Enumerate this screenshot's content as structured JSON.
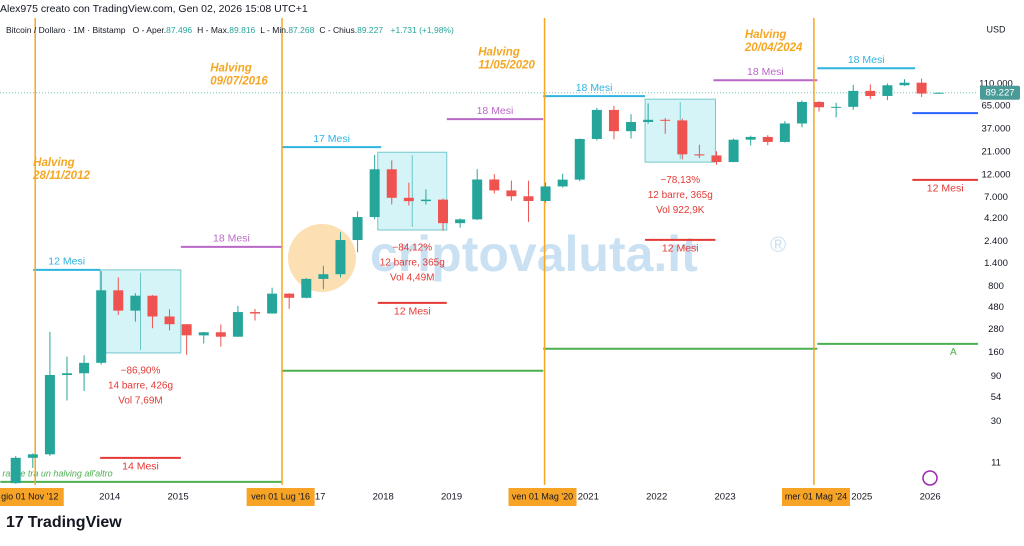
{
  "header": {
    "author_line": "Alex975 creato con TradingView.com, Gen 02, 2026 15:08 UTC+1",
    "symbol": "Bitcoin / Dollaro · 1M · Bitstamp",
    "fields": [
      {
        "key": "O - Aper.",
        "value": "87.496"
      },
      {
        "key": "H - Max.",
        "value": "89.816"
      },
      {
        "key": "L - Min.",
        "value": "87.268"
      },
      {
        "key": "C - Chius.",
        "value": "89.227"
      }
    ],
    "change": "+1.731 (+1,98%)"
  },
  "footer": {
    "logo": "TradingView"
  },
  "chart_data": {
    "type": "candlestick",
    "log_scale": true,
    "currency": "USD",
    "watermark": "criptovaluta.it",
    "watermark_mark": "®",
    "up_color": "#26a69a",
    "down_color": "#ef5350",
    "x": [
      2012.625,
      2012.875,
      2013.125,
      2013.375,
      2013.625,
      2013.875,
      2014.125,
      2014.375,
      2014.625,
      2014.875,
      2015.125,
      2015.375,
      2015.625,
      2015.875,
      2016.125,
      2016.375,
      2016.625,
      2016.875,
      2017.125,
      2017.375,
      2017.625,
      2017.875,
      2018.125,
      2018.375,
      2018.625,
      2018.875,
      2019.125,
      2019.375,
      2019.625,
      2019.875,
      2020.125,
      2020.375,
      2020.625,
      2020.875,
      2021.125,
      2021.375,
      2021.625,
      2021.875,
      2022.125,
      2022.375,
      2022.625,
      2022.875,
      2023.125,
      2023.375,
      2023.625,
      2023.875,
      2024.125,
      2024.375,
      2024.625,
      2024.875,
      2025.125,
      2025.375,
      2025.625,
      2025.875,
      2026.125
    ],
    "open": [
      6.7,
      12.4,
      13.5,
      93,
      97,
      125,
      730,
      445,
      640,
      386,
      320,
      244,
      263,
      236,
      430,
      415,
      673,
      608,
      963,
      1080,
      2480,
      4340,
      13860,
      6930,
      6390,
      6625,
      3740,
      4100,
      10820,
      8290,
      7190,
      6410,
      9140,
      10780,
      28990,
      58790,
      35040,
      43820,
      46200,
      45530,
      19940,
      19420,
      16540,
      28480,
      30470,
      26970,
      42260,
      71330,
      62680,
      63330,
      93400,
      82500,
      107100,
      114000,
      87500
    ],
    "high": [
      13,
      13.8,
      266,
      145,
      150,
      1163,
      1000,
      680,
      650,
      460,
      320,
      265,
      318,
      500,
      463,
      778,
      680,
      980,
      1325,
      3000,
      4980,
      19660,
      17200,
      9990,
      8500,
      6800,
      4200,
      13880,
      12330,
      10540,
      10500,
      10080,
      12470,
      29300,
      61780,
      64900,
      52900,
      69000,
      48200,
      47500,
      25200,
      21500,
      29200,
      31400,
      31800,
      44700,
      73800,
      72800,
      70000,
      108300,
      109300,
      111900,
      124100,
      126200,
      89816
    ],
    "low": [
      6.6,
      9.7,
      13,
      50,
      63,
      120,
      400,
      340,
      290,
      275,
      152,
      200,
      185,
      235,
      350,
      414,
      465,
      600,
      750,
      1000,
      1840,
      4100,
      5900,
      5750,
      5880,
      3120,
      3350,
      4030,
      7700,
      6450,
      3850,
      6150,
      8900,
      10370,
      28000,
      28800,
      29300,
      42000,
      32900,
      17600,
      18200,
      15500,
      16500,
      24750,
      24900,
      26600,
      38500,
      56500,
      49000,
      58900,
      76600,
      74500,
      105300,
      80600,
      87268
    ],
    "close": [
      12.4,
      13.5,
      93,
      97,
      125,
      730,
      445,
      640,
      386,
      320,
      244,
      263,
      236,
      430,
      415,
      673,
      608,
      963,
      1080,
      2480,
      4340,
      13860,
      6930,
      6390,
      6625,
      3740,
      4100,
      10820,
      8290,
      7190,
      6410,
      9140,
      10780,
      28990,
      58790,
      35040,
      43820,
      46200,
      45530,
      19940,
      19420,
      16540,
      28480,
      30470,
      26970,
      42260,
      71330,
      62680,
      63330,
      93400,
      82500,
      107100,
      114000,
      87500,
      89227
    ],
    "xlim": [
      2012.395,
      2026.7
    ],
    "ylim": [
      6.4,
      550000
    ],
    "xticks": [
      2014,
      2015,
      2017,
      2018,
      2019,
      2021,
      2022,
      2023,
      2025,
      2026
    ],
    "yticks": [
      {
        "value": 110000,
        "label": "110.000"
      },
      {
        "value": 65000,
        "label": "65.000"
      },
      {
        "value": 37000,
        "label": "37.000"
      },
      {
        "value": 21000,
        "label": "21.000"
      },
      {
        "value": 12000,
        "label": "12.000"
      },
      {
        "value": 7000,
        "label": "7.000"
      },
      {
        "value": 4200,
        "label": "4.200"
      },
      {
        "value": 2400,
        "label": "2.400"
      },
      {
        "value": 1400,
        "label": "1.400"
      },
      800,
      480,
      280,
      160,
      90,
      54,
      30,
      11
    ],
    "last_price": {
      "value": 89227,
      "label": "89.227"
    },
    "axis_badges": [
      {
        "x": 2012.83,
        "label": "gio 01 Nov '12"
      },
      {
        "x": 2016.5,
        "label": "ven 01 Lug '16"
      },
      {
        "x": 2020.33,
        "label": "ven 01 Mag '20"
      },
      {
        "x": 2024.33,
        "label": "mer 01 Mag '24"
      }
    ],
    "halvings": [
      {
        "x": 2012.91,
        "title": "Halving",
        "date": "28/11/2012",
        "label_x": 2012.88,
        "label_y": 16200
      },
      {
        "x": 2016.52,
        "title": "Halving",
        "date": "09/07/2016",
        "label_x": 2015.47,
        "label_y": 162000
      },
      {
        "x": 2020.36,
        "title": "Halving",
        "date": "11/05/2020",
        "label_x": 2019.39,
        "label_y": 239000
      },
      {
        "x": 2024.3,
        "title": "Halving",
        "date": "20/04/2024",
        "label_x": 2023.29,
        "label_y": 362000
      }
    ],
    "levels": [
      {
        "x": [
          2012.88,
          2013.86
        ],
        "y": 1200,
        "color": "#2fb4e0",
        "label": "12 Mesi"
      },
      {
        "x": [
          2012.4,
          2016.52
        ],
        "y": 6.9,
        "color": "#4caf50",
        "label": "range tra un halving all'altro"
      },
      {
        "x": [
          2013.86,
          2015.04
        ],
        "y": 12.4,
        "color": "#e53935",
        "label": "14 Mesi"
      },
      {
        "x": [
          2015.04,
          2016.52
        ],
        "y": 2100,
        "color": "#ba68c8",
        "label": "18 Mesi"
      },
      {
        "x": [
          2016.52,
          2017.97
        ],
        "y": 23800,
        "color": "#2fb4e0",
        "label": "17 Mesi"
      },
      {
        "x": [
          2016.52,
          2020.34
        ],
        "y": 103,
        "color": "#4caf50"
      },
      {
        "x": [
          2017.92,
          2018.93
        ],
        "y": 538,
        "color": "#e53935",
        "label": "12 Mesi"
      },
      {
        "x": [
          2018.93,
          2020.34
        ],
        "y": 47000,
        "color": "#ba68c8",
        "label": "18 Mesi"
      },
      {
        "x": [
          2020.34,
          2021.83
        ],
        "y": 82200,
        "color": "#2fb4e0",
        "label": "18 Mesi"
      },
      {
        "x": [
          2020.34,
          2024.35
        ],
        "y": 176,
        "color": "#4caf50"
      },
      {
        "x": [
          2021.83,
          2022.86
        ],
        "y": 2490,
        "color": "#e53935",
        "label": "12 Mesi"
      },
      {
        "x": [
          2022.83,
          2024.35
        ],
        "y": 121000,
        "color": "#ba68c8",
        "label": "18 Mesi"
      },
      {
        "x": [
          2024.35,
          2025.78
        ],
        "y": 162000,
        "color": "#2fb4e0",
        "label": "18 Mesi"
      },
      {
        "x": [
          2024.35,
          2026.7
        ],
        "y": 198,
        "color": "#4caf50"
      },
      {
        "x": [
          2025.74,
          2026.7
        ],
        "y": 10700,
        "color": "#e53935",
        "label": "12 Mesi"
      },
      {
        "x": [
          2025.74,
          2026.7
        ],
        "y": 54300,
        "color": "#2962ff"
      }
    ],
    "boxes": [
      {
        "x": [
          2013.86,
          2015.04
        ],
        "y": [
          1200,
          159
        ],
        "lines": [
          "−86,90%",
          "14 barre, 426g",
          "Vol 7,69M"
        ]
      },
      {
        "x": [
          2017.92,
          2018.93
        ],
        "y": [
          21000,
          3165
        ],
        "lines": [
          "−84,12%",
          "12 barre, 365g",
          "Vol 4,49M"
        ]
      },
      {
        "x": [
          2021.83,
          2022.86
        ],
        "y": [
          76400,
          16500
        ],
        "lines": [
          "−78,13%",
          "12 barre, 365g",
          "Vol 922,9K"
        ]
      }
    ],
    "marker": {
      "label": "A",
      "x": 2026.34,
      "y": 162
    }
  }
}
